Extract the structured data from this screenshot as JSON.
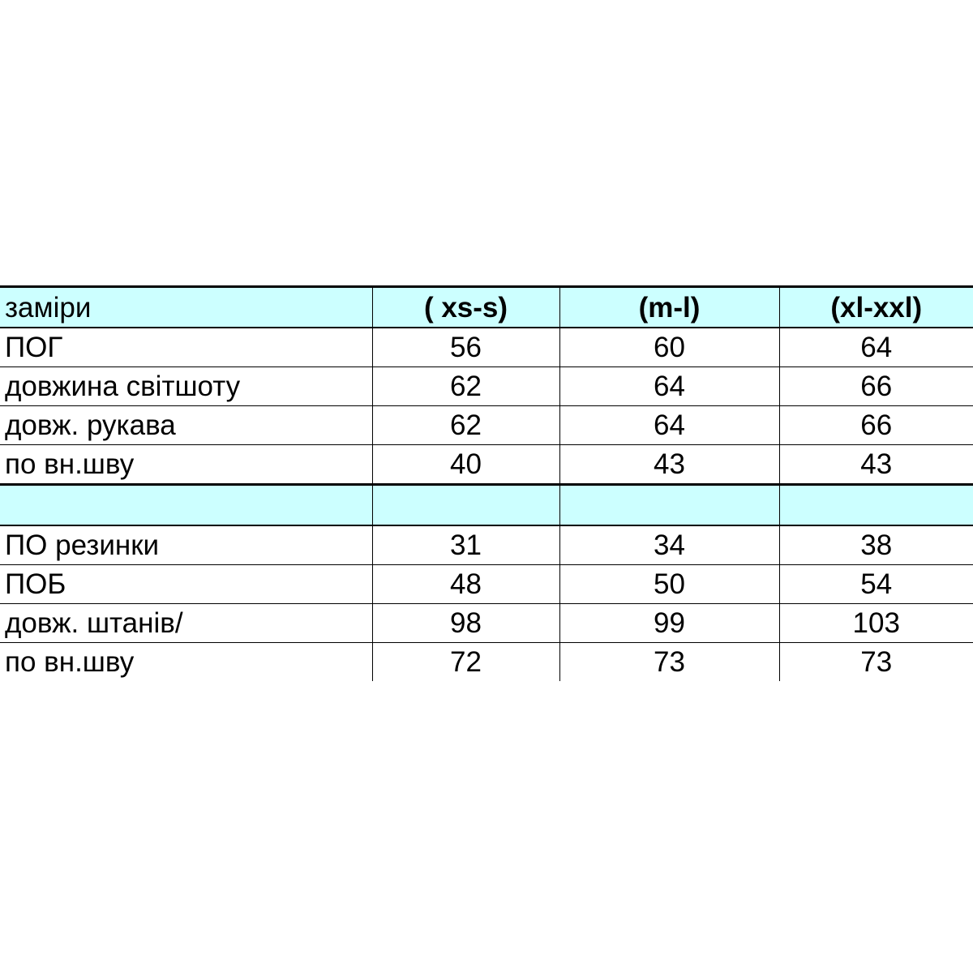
{
  "header": {
    "label": "заміри",
    "sizes": [
      "( xs-s)",
      "(m-l)",
      "(xl-xxl)"
    ]
  },
  "top_rows": [
    {
      "label": "ПОГ",
      "values": [
        "56",
        "60",
        "64"
      ]
    },
    {
      "label": "довжина світшоту",
      "values": [
        "62",
        "64",
        "66"
      ]
    },
    {
      "label": "довж. рукава",
      "values": [
        "62",
        "64",
        "66"
      ]
    },
    {
      "label": "по вн.шву",
      "values": [
        "40",
        "43",
        "43"
      ]
    }
  ],
  "bottom_rows": [
    {
      "label": "ПО резинки",
      "values": [
        "31",
        "34",
        "38"
      ]
    },
    {
      "label": "ПОБ",
      "values": [
        "48",
        "50",
        "54"
      ]
    },
    {
      "label": "довж. штанів/",
      "values": [
        "98",
        "99",
        "103"
      ]
    },
    {
      "label": "по вн.шву",
      "values": [
        "72",
        "73",
        "73"
      ]
    }
  ],
  "colors": {
    "header_fill": "#ccffff"
  }
}
